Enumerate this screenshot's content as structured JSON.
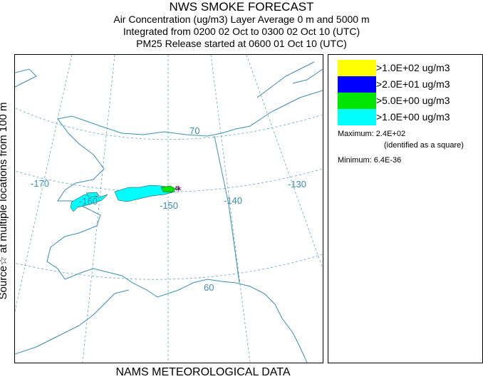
{
  "header": {
    "title": "NWS SMOKE FORECAST",
    "line2": "Air Concentration (ug/m3) Layer Average    0 m and  5000 m",
    "line3": "Integrated from 0200 02 Oct to 0300 02 Oct 10 (UTC)",
    "line4": "PM25 Release started at 0600 01 Oct 10 (UTC)"
  },
  "side_label": "Source☆  at multiple locations   from  100 m",
  "bottom_label": "NAMS METEOROLOGICAL DATA",
  "map": {
    "lon_labels": [
      "-170",
      "-160",
      "-150",
      "-140",
      "-130"
    ],
    "lat_labels": [
      "70",
      "60"
    ],
    "colors": {
      "coast": "#3a8fb0",
      "grid": "#5aa8c8",
      "cyan": "#00ffff",
      "green": "#00e600"
    }
  },
  "legend": {
    "items": [
      {
        "label": ">1.0E+02 ug/m3",
        "color": "#ffff00"
      },
      {
        "label": ">2.0E+01 ug/m3",
        "color": "#0000ff"
      },
      {
        "label": ">5.0E+00 ug/m3",
        "color": "#00e600"
      },
      {
        "label": ">1.0E+00 ug/m3",
        "color": "#00ffff"
      }
    ],
    "maximum_label": "Maximum:",
    "maximum_value": "2.4E+02",
    "maximum_note": "(identified as a square)",
    "minimum_label": "Minimum:",
    "minimum_value": "6.4E-36"
  }
}
